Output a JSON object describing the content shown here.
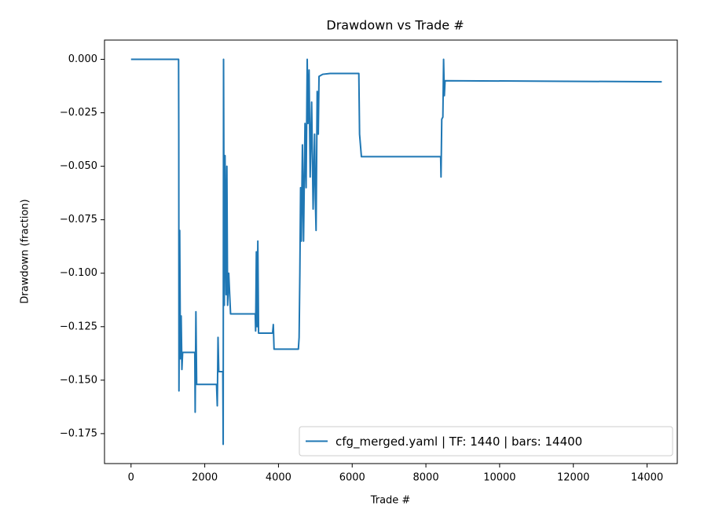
{
  "chart_data": {
    "type": "line",
    "title": "Drawdown vs Trade #",
    "x_label": "Trade #",
    "y_label": "Drawdown (fraction)",
    "legend": "lower right",
    "xlim": [
      -720,
      14820
    ],
    "ylim": [
      -0.189,
      0.009
    ],
    "xticks": [
      0,
      2000,
      4000,
      6000,
      8000,
      10000,
      12000,
      14000
    ],
    "yticks": [
      {
        "value": 0,
        "label": "0.000"
      },
      {
        "value": -0.025,
        "label": "−0.025"
      },
      {
        "value": -0.05,
        "label": "−0.050"
      },
      {
        "value": -0.075,
        "label": "−0.075"
      },
      {
        "value": -0.1,
        "label": "−0.100"
      },
      {
        "value": -0.125,
        "label": "−0.125"
      },
      {
        "value": -0.15,
        "label": "−0.150"
      },
      {
        "value": -0.175,
        "label": "−0.175"
      }
    ],
    "series": [
      {
        "name": "cfg_merged.yaml | TF: 1440 | bars: 14400",
        "color": "#1f77b4",
        "x": [
          0,
          1290,
          1295,
          1300,
          1320,
          1340,
          1360,
          1380,
          1400,
          1730,
          1740,
          1760,
          1780,
          2320,
          2340,
          2360,
          2380,
          2490,
          2500,
          2510,
          2530,
          2550,
          2580,
          2600,
          2620,
          2650,
          2700,
          3370,
          3380,
          3400,
          3420,
          3440,
          3460,
          3840,
          3860,
          3880,
          4540,
          4560,
          4580,
          4600,
          4620,
          4650,
          4680,
          4720,
          4750,
          4780,
          4800,
          4830,
          4860,
          4900,
          4940,
          4980,
          5000,
          5020,
          5050,
          5080,
          5100,
          5200,
          5400,
          6180,
          6200,
          6250,
          8400,
          8410,
          8430,
          8460,
          8480,
          8500,
          8520,
          14400
        ],
        "values": [
          0,
          0,
          -0.036,
          -0.155,
          -0.08,
          -0.14,
          -0.12,
          -0.145,
          -0.137,
          -0.137,
          -0.165,
          -0.118,
          -0.152,
          -0.152,
          -0.162,
          -0.13,
          -0.146,
          -0.146,
          -0.18,
          0,
          -0.115,
          -0.045,
          -0.11,
          -0.05,
          -0.115,
          -0.1,
          -0.119,
          -0.119,
          -0.127,
          -0.09,
          -0.125,
          -0.085,
          -0.128,
          -0.128,
          -0.124,
          -0.1355,
          -0.1355,
          -0.13,
          -0.1,
          -0.06,
          -0.085,
          -0.04,
          -0.085,
          -0.03,
          -0.06,
          0,
          -0.03,
          -0.005,
          -0.055,
          -0.02,
          -0.07,
          -0.035,
          -0.065,
          -0.08,
          -0.015,
          -0.035,
          -0.008,
          -0.007,
          -0.0066,
          -0.0066,
          -0.035,
          -0.0455,
          -0.0455,
          -0.055,
          -0.028,
          -0.027,
          0,
          -0.017,
          -0.01,
          -0.0105
        ]
      }
    ]
  }
}
